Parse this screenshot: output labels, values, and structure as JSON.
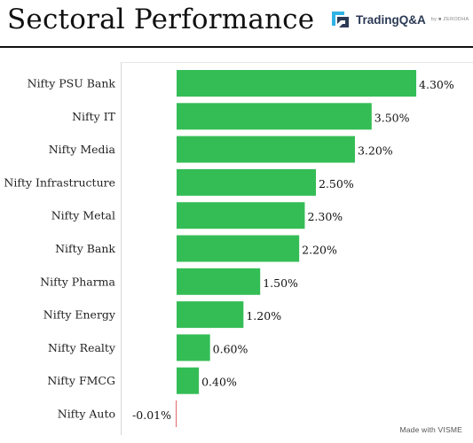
{
  "header": {
    "title": "Sectoral Performance",
    "logo_text": "TradingQ&A",
    "logo_by": "by ■ ZERODHA"
  },
  "footer": {
    "credit": "Made with VISME"
  },
  "colors": {
    "positive": "#34bd55",
    "negative": "#e06666"
  },
  "chart_data": {
    "type": "bar",
    "orientation": "horizontal",
    "title": "Sectoral Performance",
    "categories": [
      "Nifty PSU Bank",
      "Nifty IT",
      "Nifty Media",
      "Nifty Infrastructure",
      "Nifty Metal",
      "Nifty Bank",
      "Nifty Pharma",
      "Nifty Energy",
      "Nifty Realty",
      "Nifty FMCG",
      "Nifty Auto"
    ],
    "values": [
      4.3,
      3.5,
      3.2,
      2.5,
      2.3,
      2.2,
      1.5,
      1.2,
      0.6,
      0.4,
      -0.01
    ],
    "labels": [
      "4.30%",
      "3.50%",
      "3.20%",
      "2.50%",
      "2.30%",
      "2.20%",
      "1.50%",
      "1.20%",
      "0.60%",
      "0.40%",
      "-0.01%"
    ],
    "xlabel": "",
    "ylabel": "",
    "grid": false,
    "legend": "none"
  }
}
